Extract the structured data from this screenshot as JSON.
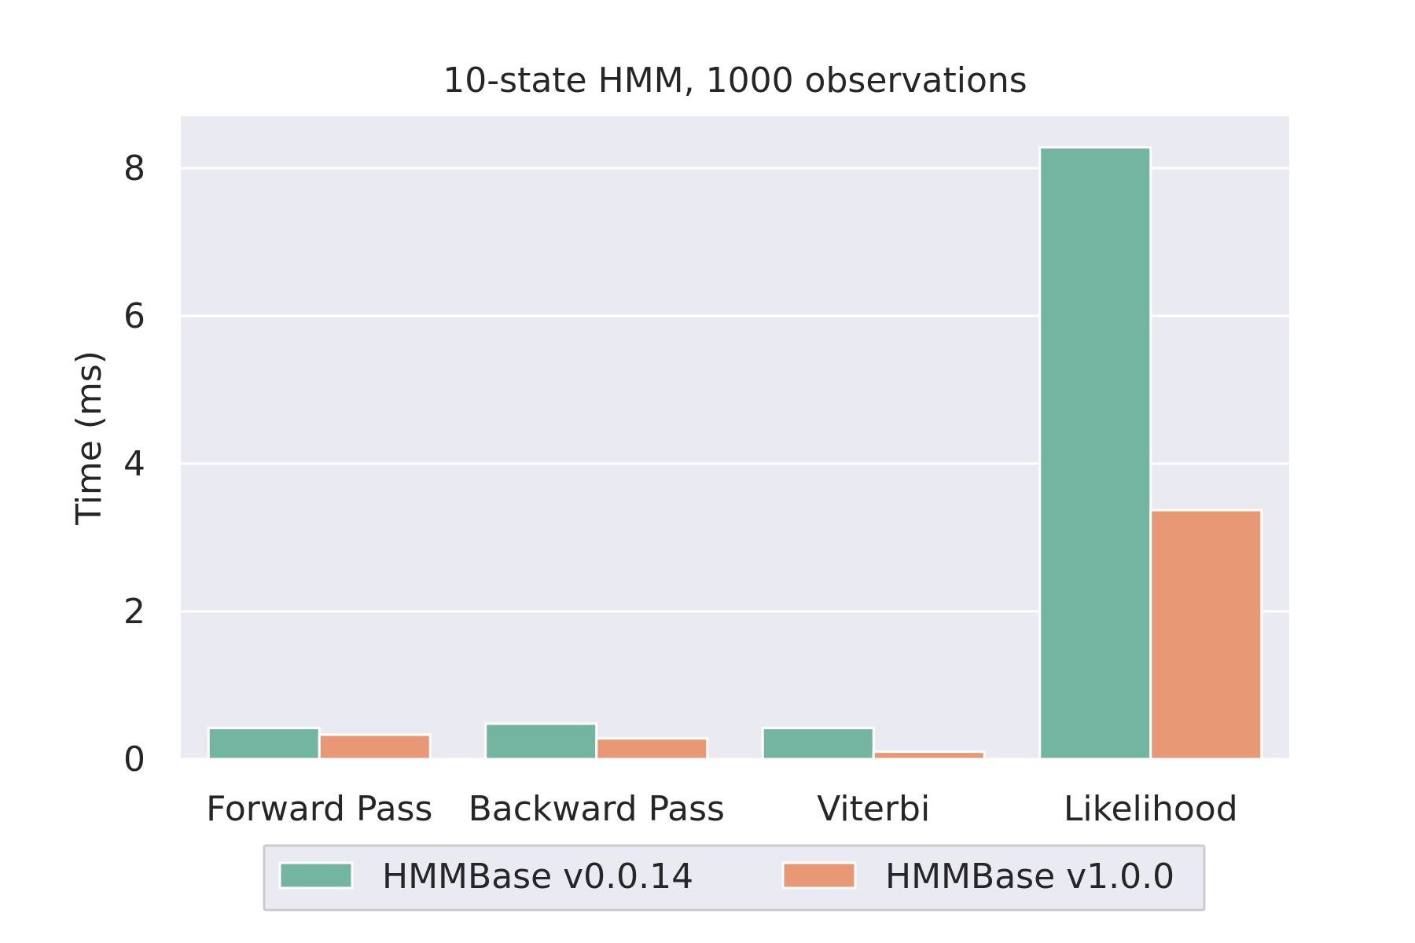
{
  "chart_data": {
    "type": "bar",
    "title": "10-state HMM, 1000 observations",
    "xlabel": "",
    "ylabel": "Time (ms)",
    "categories": [
      "Forward Pass",
      "Backward Pass",
      "Viterbi",
      "Likelihood"
    ],
    "series": [
      {
        "name": "HMMBase v0.0.14",
        "values": [
          0.42,
          0.48,
          0.42,
          8.28
        ],
        "color": "#73b5a0"
      },
      {
        "name": "HMMBase v1.0.0",
        "values": [
          0.33,
          0.28,
          0.1,
          3.37
        ],
        "color": "#e99876"
      }
    ],
    "ylim": [
      0,
      8.7
    ],
    "yticks": [
      0,
      2,
      4,
      6,
      8
    ],
    "ytick_labels": [
      "0",
      "2",
      "4",
      "6",
      "8"
    ],
    "grid": true,
    "legend_position": "bottom-center",
    "background_color": "#eaeaf2",
    "grid_color": "#ffffff"
  }
}
